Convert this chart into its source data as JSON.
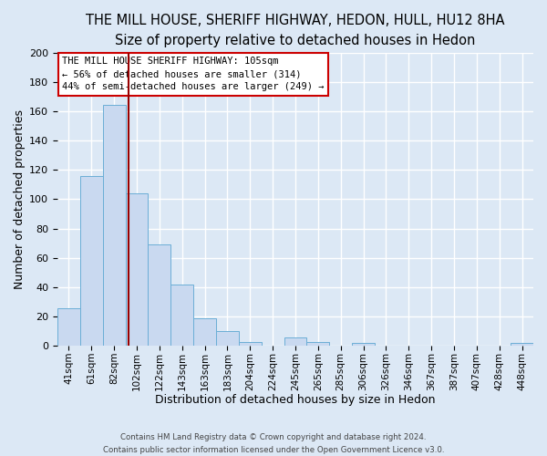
{
  "title": "THE MILL HOUSE, SHERIFF HIGHWAY, HEDON, HULL, HU12 8HA",
  "subtitle": "Size of property relative to detached houses in Hedon",
  "xlabel": "Distribution of detached houses by size in Hedon",
  "ylabel": "Number of detached properties",
  "bar_labels": [
    "41sqm",
    "61sqm",
    "82sqm",
    "102sqm",
    "122sqm",
    "143sqm",
    "163sqm",
    "183sqm",
    "204sqm",
    "224sqm",
    "245sqm",
    "265sqm",
    "285sqm",
    "306sqm",
    "326sqm",
    "346sqm",
    "367sqm",
    "387sqm",
    "407sqm",
    "428sqm",
    "448sqm"
  ],
  "bar_values": [
    26,
    116,
    164,
    104,
    69,
    42,
    19,
    10,
    3,
    0,
    6,
    3,
    0,
    2,
    0,
    0,
    0,
    0,
    0,
    0,
    2
  ],
  "bar_color": "#c9d9f0",
  "bar_edge_color": "#6baed6",
  "ylim": [
    0,
    200
  ],
  "yticks": [
    0,
    20,
    40,
    60,
    80,
    100,
    120,
    140,
    160,
    180,
    200
  ],
  "annotation_title": "THE MILL HOUSE SHERIFF HIGHWAY: 105sqm",
  "annotation_line1": "← 56% of detached houses are smaller (314)",
  "annotation_line2": "44% of semi-detached houses are larger (249) →",
  "annotation_box_color": "#ffffff",
  "annotation_border_color": "#cc0000",
  "vline_color": "#990000",
  "footer1": "Contains HM Land Registry data © Crown copyright and database right 2024.",
  "footer2": "Contains public sector information licensed under the Open Government Licence v3.0.",
  "background_color": "#dce8f5",
  "plot_background": "#dce8f5",
  "grid_color": "#ffffff",
  "title_fontsize": 10.5,
  "subtitle_fontsize": 9.5
}
